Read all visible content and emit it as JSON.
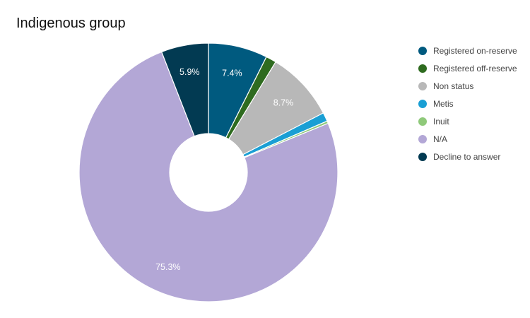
{
  "chart_data": {
    "type": "pie",
    "donut": true,
    "title": "Indigenous group",
    "legend_position": "right",
    "slices": [
      {
        "label": "Registered on-reserve",
        "value": 7.4,
        "value_label": "7.4%",
        "color": "#005a7f",
        "show_label": true
      },
      {
        "label": "Registered off-reserve",
        "value": 1.3,
        "value_label": "1.3%",
        "color": "#2e6b1f",
        "show_label": false
      },
      {
        "label": "Non status",
        "value": 8.7,
        "value_label": "8.7%",
        "color": "#b8b8b8",
        "show_label": true
      },
      {
        "label": "Metis",
        "value": 1.1,
        "value_label": "1.1%",
        "color": "#1a9fd4",
        "show_label": false
      },
      {
        "label": "Inuit",
        "value": 0.3,
        "value_label": "0.3%",
        "color": "#8fc97a",
        "show_label": false
      },
      {
        "label": "N/A",
        "value": 75.3,
        "value_label": "75.3%",
        "color": "#b3a7d6",
        "show_label": true
      },
      {
        "label": "Decline to answer",
        "value": 5.9,
        "value_label": "5.9%",
        "color": "#023a52",
        "show_label": true
      }
    ]
  }
}
